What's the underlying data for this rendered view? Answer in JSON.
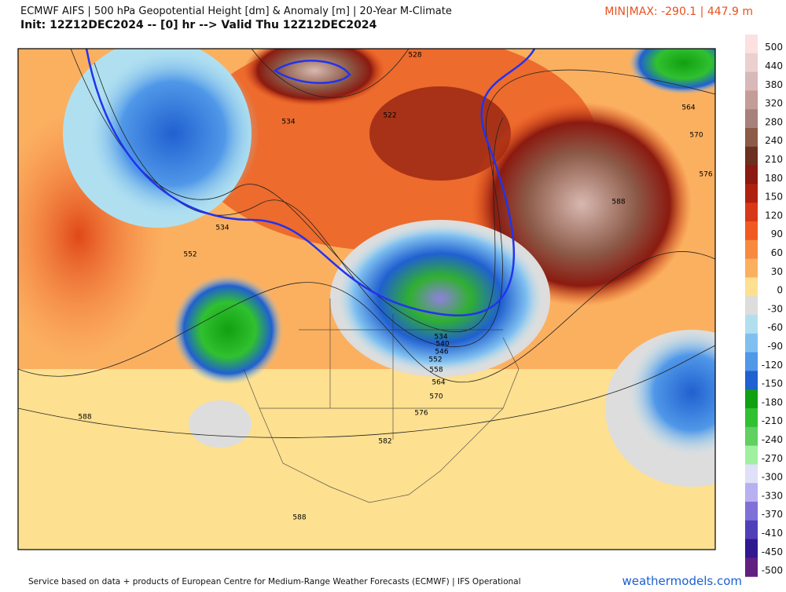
{
  "header": {
    "title": "ECMWF AIFS | 500 hPa Geopotential Height [dm] & Anomaly [m] | 20-Year M-Climate",
    "subtitle": "Init: 12Z12DEC2024 -- [0] hr --> Valid Thu 12Z12DEC2024",
    "minmax": "MIN|MAX: -290.1 | 447.9 m"
  },
  "colorbar": {
    "labels": [
      "500",
      "440",
      "380",
      "320",
      "280",
      "240",
      "210",
      "180",
      "150",
      "120",
      "90",
      "60",
      "30",
      "0",
      "-30",
      "-60",
      "-90",
      "-120",
      "-150",
      "-180",
      "-210",
      "-240",
      "-270",
      "-300",
      "-330",
      "-370",
      "-410",
      "-450",
      "-500"
    ]
  },
  "contour_labels": [
    "528",
    "534",
    "522",
    "564",
    "570",
    "576",
    "588",
    "534",
    "552",
    "588",
    "582",
    "588",
    "576",
    "570",
    "564",
    "558",
    "552",
    "546",
    "540",
    "534"
  ],
  "footer": {
    "credit": "Service based on data + products of European Centre for Medium-Range Weather Forecasts (ECMWF) | IFS Operational",
    "brand": "weathermodels.com"
  }
}
